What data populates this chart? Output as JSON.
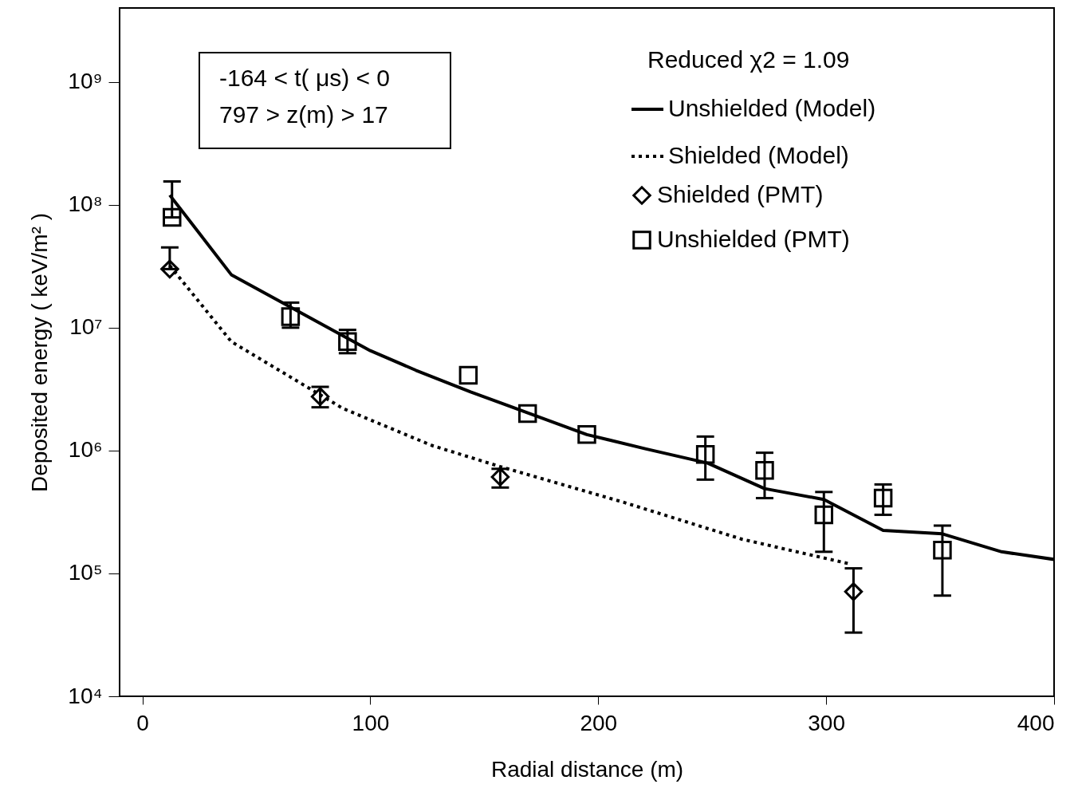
{
  "chart_data": {
    "type": "line",
    "xlabel": "Radial distance (m)",
    "ylabel": "Deposited energy ( keV/m² )",
    "xlim": [
      -10,
      400
    ],
    "xticks": [
      0,
      100,
      200,
      300,
      400
    ],
    "ylim": [
      10000,
      4000000000
    ],
    "log": true,
    "yticks": [
      {
        "value": 10000,
        "label": "10⁴"
      },
      {
        "value": 100000,
        "label": "10⁵"
      },
      {
        "value": 1000000,
        "label": "10⁶"
      },
      {
        "value": 10000000,
        "label": "10⁷"
      },
      {
        "value": 100000000,
        "label": "10⁸"
      },
      {
        "value": 1000000000,
        "label": "10⁹"
      }
    ],
    "grid": false,
    "legend": "top right",
    "annotations": [
      "Reduced  χ2 = 1.09",
      "-164 < t( μs) < 0",
      " 797 > z(m) > 17"
    ],
    "series": [
      {
        "name": "Unshielded (Model)",
        "type": "line",
        "color": "#000000",
        "line_style": "solid",
        "marker": "none",
        "x": [
          12,
          39,
          100,
          120,
          144,
          170,
          195,
          221,
          248,
          273,
          299,
          325,
          351,
          377,
          400
        ],
        "values": [
          120000000,
          27000000,
          6500000,
          4500000,
          3000000,
          2000000,
          1350000,
          1030000,
          790000,
          490000,
          400000,
          224000,
          210000,
          150000,
          130000
        ]
      },
      {
        "name": "Shielded (Model)",
        "type": "line",
        "color": "#000000",
        "line_style": "dotted",
        "marker": "none",
        "x": [
          12,
          39,
          88,
          127,
          157,
          211,
          263,
          310
        ],
        "values": [
          32000000,
          7700000,
          2200000,
          1100000,
          740000,
          380000,
          190000,
          120000
        ]
      },
      {
        "name": "Shielded (PMT)",
        "type": "scatter",
        "color": "#000000",
        "marker": "diamond",
        "x": [
          12,
          78,
          157,
          312
        ],
        "values": [
          30000000,
          2750000,
          610000,
          71000
        ],
        "errors": [
          [
            30000000,
            45000000
          ],
          [
            2250000,
            3300000
          ],
          [
            500000,
            710000
          ],
          [
            33000,
            110000
          ]
        ]
      },
      {
        "name": "Unshielded (PMT)",
        "type": "scatter",
        "color": "#000000",
        "marker": "square",
        "x": [
          13,
          65,
          90,
          143,
          169,
          195,
          247,
          273,
          299,
          325,
          351
        ],
        "values": [
          79000000,
          12300000,
          7700000,
          4100000,
          2000000,
          1350000,
          930000,
          690000,
          300000,
          410000,
          155000
        ],
        "errors": [
          [
            79000000,
            155000000
          ],
          [
            10000000,
            16000000
          ],
          [
            6200000,
            9600000
          ],
          null,
          null,
          null,
          [
            580000,
            1300000
          ],
          [
            410000,
            960000
          ],
          [
            150000,
            460000
          ],
          [
            300000,
            530000
          ],
          [
            66000,
            245000
          ]
        ]
      }
    ]
  }
}
